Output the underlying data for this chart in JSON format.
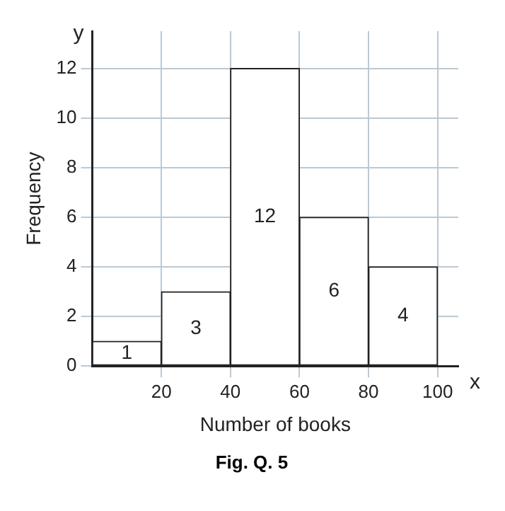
{
  "chart_data": {
    "type": "histogram",
    "bins": [
      0,
      20,
      40,
      60,
      80,
      100
    ],
    "values": [
      1,
      3,
      12,
      6,
      4
    ],
    "color": "#ffffff",
    "xlabel": "Number of books",
    "ylabel": "Frequency",
    "xlim": [
      0,
      106
    ],
    "xticks": [
      20,
      40,
      60,
      80,
      100
    ],
    "ylim": [
      0,
      13.5
    ],
    "yticks": [
      0,
      2,
      4,
      6,
      8,
      10,
      12
    ],
    "grid": true,
    "data_labels": true,
    "annotations": [
      "y",
      "x",
      "Fig. Q. 5"
    ]
  }
}
